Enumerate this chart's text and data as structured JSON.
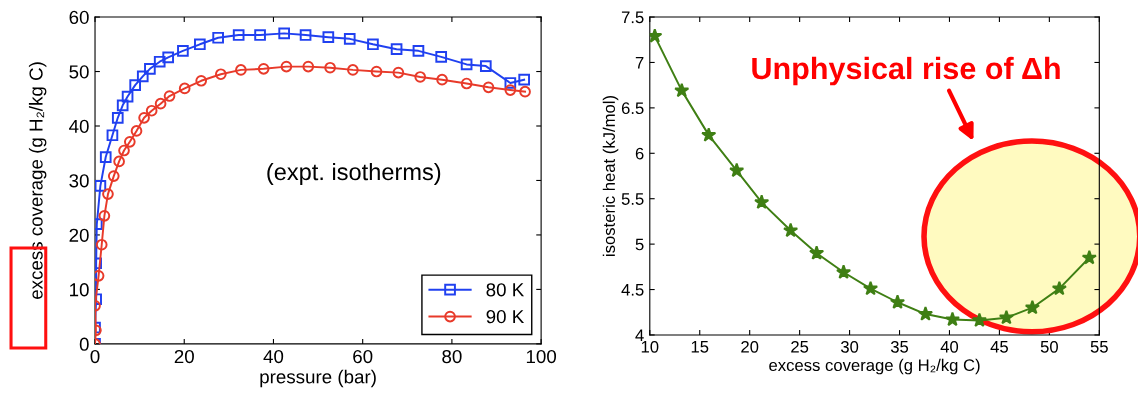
{
  "chart_data": [
    {
      "type": "line",
      "xlabel": "pressure (bar)",
      "ylabel": "excess coverage (g H₂/kg C)",
      "xlim": [
        0,
        100
      ],
      "ylim": [
        0,
        60
      ],
      "xticks": [
        0,
        20,
        40,
        60,
        80,
        100
      ],
      "yticks": [
        0,
        10,
        20,
        30,
        40,
        50,
        60
      ],
      "grid": false,
      "legend": "bottom right",
      "line_style": "solid",
      "annotations": [
        "(expt. isotherms)"
      ],
      "series": [
        {
          "name": "80 K",
          "color": "#2040f0",
          "marker": "square",
          "x": [
            0,
            0,
            0.25,
            0.25,
            0.4,
            1.2,
            2.4,
            3.9,
            5.1,
            6.2,
            7.3,
            9.0,
            10.7,
            12.3,
            14.5,
            16.4,
            19.7,
            23.5,
            27.6,
            32.2,
            37.0,
            42.4,
            47.2,
            52.3,
            57.1,
            62.3,
            67.6,
            72.5,
            77.6,
            83.3,
            87.6,
            93.1,
            96.2
          ],
          "values": [
            0,
            3,
            8.2,
            14.8,
            22,
            29,
            34.3,
            38.3,
            41.5,
            43.8,
            45.4,
            47.5,
            49.1,
            50.5,
            51.8,
            52.6,
            53.8,
            55.0,
            56.2,
            56.7,
            56.7,
            57.0,
            56.7,
            56.3,
            56.0,
            55.0,
            54.1,
            53.8,
            52.7,
            51.3,
            51.0,
            47.9,
            48.5
          ]
        },
        {
          "name": "90 K",
          "color": "#e83a2a",
          "marker": "circle",
          "x": [
            0,
            0.2,
            0,
            0.8,
            1.5,
            2.1,
            2.9,
            4.2,
            5.4,
            6.5,
            7.8,
            9.3,
            11.0,
            12.7,
            14.7,
            16.7,
            20.1,
            23.8,
            28.2,
            32.7,
            37.8,
            42.9,
            47.8,
            52.7,
            57.8,
            63.1,
            68.0,
            72.9,
            77.8,
            83.3,
            88.2,
            93.1,
            96.4
          ],
          "values": [
            0,
            2.5,
            7,
            12.5,
            18.2,
            23.5,
            27.5,
            30.8,
            33.5,
            35.5,
            37.1,
            39.1,
            41.5,
            42.8,
            44.1,
            45.5,
            46.9,
            48.3,
            49.5,
            50.3,
            50.5,
            50.9,
            50.9,
            50.7,
            50.3,
            50.0,
            49.8,
            49.0,
            48.5,
            47.8,
            47.1,
            46.6,
            46.3
          ]
        }
      ]
    },
    {
      "type": "line",
      "xlabel": "excess coverage (g H₂/kg C)",
      "ylabel": "isosteric heat (kJ/mol)",
      "xlim": [
        10,
        55
      ],
      "ylim": [
        4,
        7.5
      ],
      "xticks": [
        10,
        15,
        20,
        25,
        30,
        35,
        40,
        45,
        50,
        55
      ],
      "yticks": [
        4,
        4.5,
        5,
        5.5,
        6,
        6.5,
        7,
        7.5
      ],
      "grid": false,
      "legend": false,
      "line_style": "solid",
      "marker": "star",
      "annotations": [
        "Unphysical rise of Δh"
      ],
      "series": [
        {
          "color": "#3f7f14",
          "x": [
            10.5,
            13.2,
            15.9,
            18.7,
            21.2,
            24.1,
            26.7,
            29.4,
            32.1,
            34.8,
            37.6,
            40.3,
            43.0,
            45.7,
            48.3,
            51.0,
            54.0
          ],
          "values": [
            7.29,
            6.69,
            6.2,
            5.81,
            5.46,
            5.15,
            4.9,
            4.69,
            4.51,
            4.36,
            4.23,
            4.17,
            4.16,
            4.19,
            4.3,
            4.51,
            4.85
          ]
        }
      ]
    }
  ]
}
